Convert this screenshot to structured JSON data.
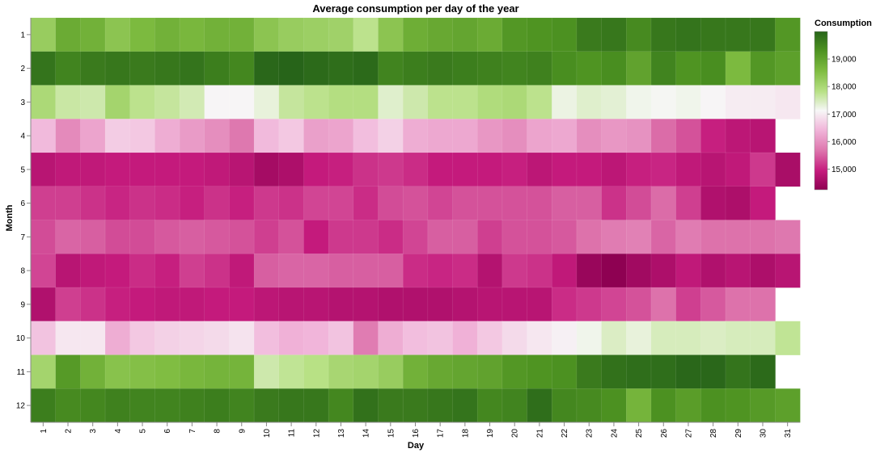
{
  "chart_data": {
    "type": "heatmap",
    "title": "Average consumption per day of the year",
    "xlabel": "Day",
    "ylabel": "Month",
    "x_categories": [
      "1",
      "2",
      "3",
      "4",
      "5",
      "6",
      "7",
      "8",
      "9",
      "10",
      "11",
      "12",
      "13",
      "14",
      "15",
      "16",
      "17",
      "18",
      "19",
      "20",
      "21",
      "22",
      "23",
      "24",
      "25",
      "26",
      "27",
      "28",
      "29",
      "30",
      "31"
    ],
    "y_categories": [
      "1",
      "2",
      "3",
      "4",
      "5",
      "6",
      "7",
      "8",
      "9",
      "10",
      "11",
      "12"
    ],
    "values": [
      [
        18250,
        18850,
        18750,
        18400,
        18600,
        18750,
        18650,
        18750,
        18750,
        18400,
        18250,
        18200,
        18150,
        17800,
        18400,
        18800,
        18900,
        18950,
        18850,
        19200,
        19250,
        19300,
        19650,
        19700,
        19400,
        19700,
        19750,
        19700,
        19700,
        19700,
        19200
      ],
      [
        19750,
        19500,
        19650,
        19700,
        19650,
        19700,
        19750,
        19600,
        19450,
        19950,
        20000,
        19900,
        19850,
        19900,
        19500,
        19600,
        19650,
        19600,
        19550,
        19500,
        19550,
        19350,
        19250,
        19350,
        19000,
        19500,
        19250,
        19350,
        18600,
        19200,
        19050
      ],
      [
        18000,
        17650,
        17600,
        18100,
        17800,
        17700,
        17550,
        17100,
        17100,
        17300,
        17700,
        17800,
        17900,
        17900,
        17400,
        17600,
        17800,
        17800,
        17950,
        18000,
        17800,
        17250,
        17400,
        17350,
        17200,
        17150,
        17200,
        17100,
        17000,
        17000,
        16950
      ],
      [
        16450,
        15900,
        16200,
        16650,
        16600,
        16300,
        16100,
        15950,
        15700,
        16450,
        16600,
        16150,
        16200,
        16500,
        16700,
        16300,
        16250,
        16250,
        16050,
        15950,
        16200,
        16250,
        15950,
        16050,
        16000,
        15600,
        15400,
        15000,
        14850,
        14800,
        null
      ],
      [
        14800,
        14900,
        14900,
        14950,
        14950,
        14950,
        14950,
        14900,
        14800,
        14550,
        14650,
        14950,
        15000,
        15150,
        15200,
        15100,
        14950,
        14950,
        14950,
        15000,
        14850,
        14950,
        14950,
        14850,
        15000,
        15050,
        14900,
        14800,
        14900,
        15200,
        14600
      ],
      [
        15250,
        15250,
        15150,
        15050,
        15150,
        15100,
        15000,
        15150,
        15000,
        15200,
        15150,
        15300,
        15300,
        15100,
        15350,
        15400,
        15300,
        15400,
        15400,
        15400,
        15400,
        15500,
        15500,
        15150,
        15350,
        15600,
        15250,
        14700,
        14650,
        14950,
        null
      ],
      [
        15350,
        15550,
        15500,
        15350,
        15350,
        15450,
        15500,
        15450,
        15400,
        15250,
        15400,
        14950,
        15200,
        15200,
        15100,
        15300,
        15500,
        15500,
        15250,
        15400,
        15400,
        15450,
        15650,
        15750,
        15800,
        15550,
        15750,
        15650,
        15650,
        15650,
        15700
      ],
      [
        15300,
        14800,
        14900,
        14950,
        15100,
        15000,
        15250,
        15150,
        14900,
        15500,
        15550,
        15550,
        15500,
        15500,
        15500,
        15100,
        15050,
        15100,
        14750,
        15200,
        15150,
        14900,
        14400,
        14250,
        14500,
        14650,
        14900,
        14700,
        14800,
        14650,
        14800
      ],
      [
        14700,
        15250,
        15150,
        15000,
        14950,
        14900,
        14900,
        14950,
        14950,
        14850,
        14800,
        14800,
        14750,
        14750,
        14700,
        14700,
        14700,
        14750,
        14800,
        14800,
        14800,
        15100,
        15200,
        15300,
        15400,
        15650,
        15250,
        15450,
        15650,
        15650,
        null
      ],
      [
        16550,
        16950,
        16950,
        16300,
        16600,
        16700,
        16750,
        16800,
        16900,
        16500,
        16350,
        16400,
        16550,
        15750,
        16300,
        16500,
        16550,
        16350,
        16600,
        16800,
        16950,
        17050,
        17200,
        17450,
        17300,
        17500,
        17500,
        17450,
        17500,
        17500,
        17750
      ],
      [
        18100,
        19150,
        18750,
        18450,
        18500,
        18550,
        18650,
        18700,
        18700,
        17600,
        17750,
        17850,
        18050,
        18100,
        18250,
        18750,
        18900,
        18950,
        19000,
        19200,
        19250,
        19300,
        19650,
        19800,
        19850,
        19850,
        19950,
        19950,
        19750,
        19900,
        null
      ],
      [
        19600,
        19400,
        19450,
        19550,
        19500,
        19500,
        19550,
        19600,
        19500,
        19650,
        19700,
        19700,
        19450,
        19800,
        19650,
        19650,
        19700,
        19750,
        19450,
        19500,
        19850,
        19450,
        19400,
        19300,
        18700,
        19300,
        19100,
        19300,
        19250,
        19150,
        19050
      ]
    ],
    "color_scale": {
      "type": "diverging",
      "domain": [
        14250,
        20000
      ],
      "low_color": "#8e0152",
      "mid_color": "#f7f7f7",
      "high_color": "#276419"
    },
    "legend": {
      "title": "Consumption",
      "placement": "right",
      "ticks": [
        "15,000",
        "16,000",
        "17,000",
        "18,000",
        "19,000"
      ],
      "tick_values": [
        15000,
        16000,
        17000,
        18000,
        19000
      ]
    },
    "grid": false
  }
}
